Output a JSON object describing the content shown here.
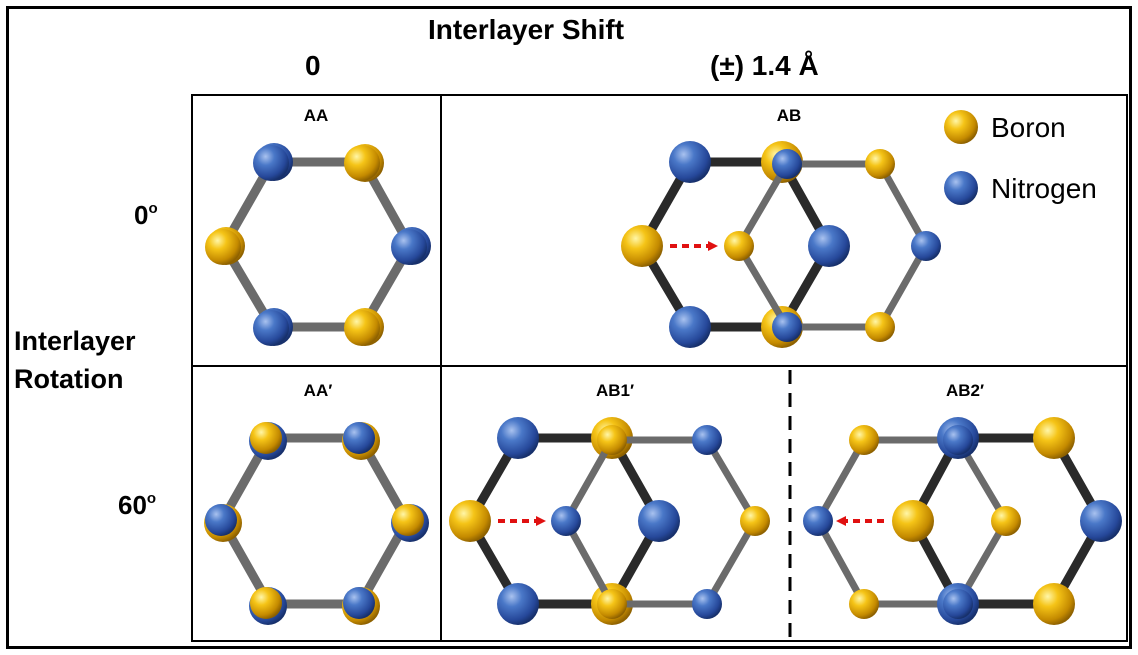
{
  "header": {
    "title": "Interlayer Shift",
    "shift_zero": "0",
    "shift_value": "(±) 1.4 Å"
  },
  "rows": {
    "axis_line1": "Interlayer",
    "axis_line2": "Rotation",
    "row0_value": "0",
    "row0_unit": "o",
    "row60_value": "60",
    "row60_unit": "o"
  },
  "panels": {
    "aa": "AA",
    "ab": "AB",
    "aa_prime": "AA′",
    "ab1_prime": "AB1′",
    "ab2_prime": "AB2′"
  },
  "legend": {
    "boron": "Boron",
    "nitrogen": "Nitrogen"
  },
  "colors": {
    "boron": "#f2b705",
    "nitrogen": "#3c68bb",
    "bond": "#6b6b6b",
    "arrow": "#e01010"
  }
}
